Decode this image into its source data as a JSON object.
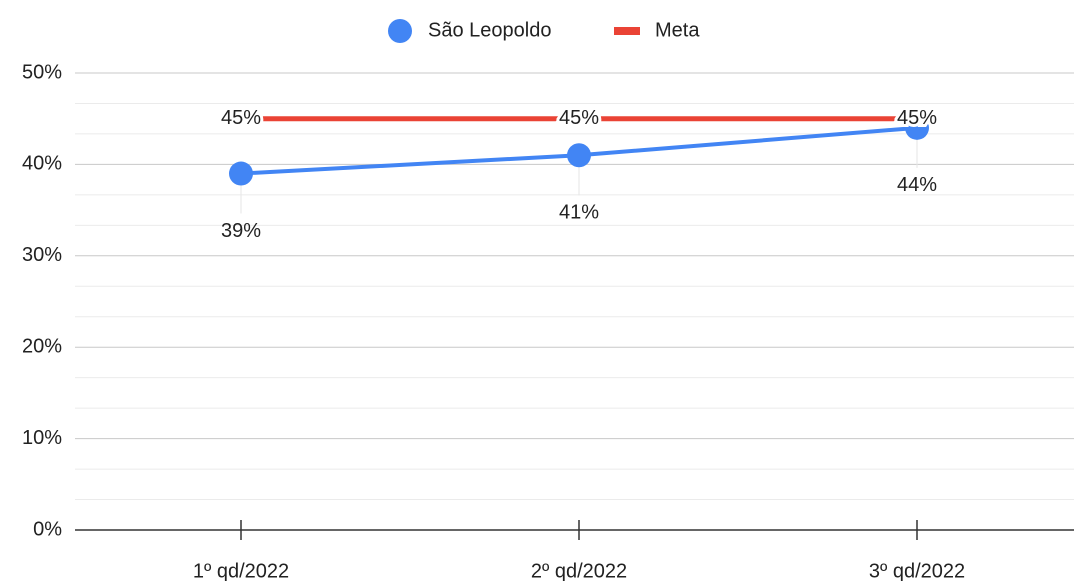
{
  "chart_data": {
    "type": "line",
    "categories": [
      "1º qd/2022",
      "2º qd/2022",
      "3º qd/2022"
    ],
    "series": [
      {
        "name": "São Leopoldo",
        "color": "#4285f4",
        "values": [
          39,
          41,
          44
        ],
        "value_labels": [
          "39%",
          "41%",
          "44%"
        ],
        "marker": true
      },
      {
        "name": "Meta",
        "color": "#ea4335",
        "values": [
          45,
          45,
          45
        ],
        "value_labels": [
          "45%",
          "45%",
          "45%"
        ],
        "marker": false
      }
    ],
    "ylim": [
      0,
      50
    ],
    "yticks": [
      {
        "value": 0,
        "label": "0%"
      },
      {
        "value": 10,
        "label": "10%"
      },
      {
        "value": 20,
        "label": "20%"
      },
      {
        "value": 30,
        "label": "30%"
      },
      {
        "value": 40,
        "label": "40%"
      },
      {
        "value": 50,
        "label": "50%"
      }
    ],
    "grid": true,
    "minor_grid": true,
    "legend": "top"
  }
}
